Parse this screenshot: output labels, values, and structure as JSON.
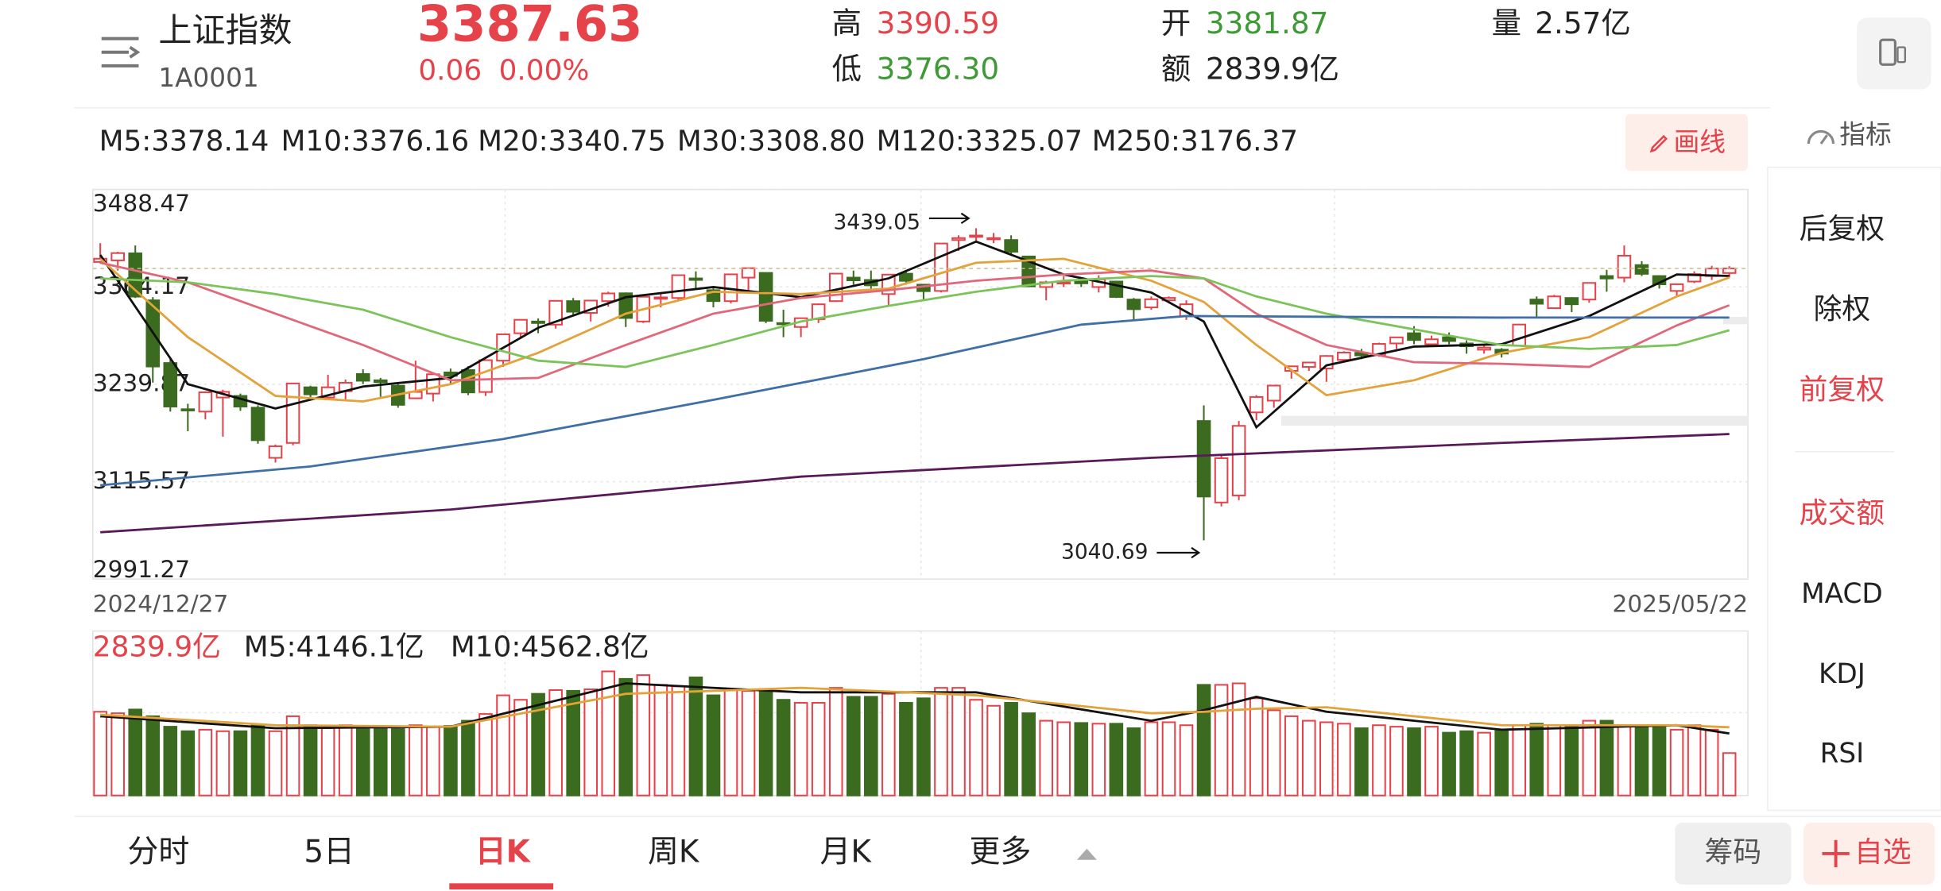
{
  "header": {
    "name": "上证指数",
    "code": "1A0001",
    "price": "3387.63",
    "change": "0.06",
    "change_pct": "0.00%",
    "high_label": "高",
    "high": "3390.59",
    "low_label": "低",
    "low": "3376.30",
    "open_label": "开",
    "open": "3381.87",
    "amount_label": "额",
    "amount": "2839.9亿",
    "volume_label": "量",
    "volume": "2.57亿"
  },
  "toolbar": {
    "draw": "画线",
    "indicator": "指标"
  },
  "side_menu": [
    "后复权",
    "除权",
    "前复权",
    "成交额",
    "MACD",
    "KDJ",
    "RSI"
  ],
  "tabs": [
    "分时",
    "5日",
    "日K",
    "周K",
    "月K",
    "更多"
  ],
  "buttons": {
    "chips": "筹码",
    "watch": "自选"
  },
  "chart_data": [
    {
      "type": "candlestick",
      "up_color": "#e5424a",
      "down_color": "#3b6b1f",
      "grid": true,
      "ylim": [
        2991.27,
        3488.47
      ],
      "yticks": [
        3488.47,
        3364.17,
        3239.87,
        3115.57,
        2991.27
      ],
      "x_labels": [
        "2024/12/27",
        "2025/05/22"
      ],
      "high_label": 3439.05,
      "low_label": 3040.69,
      "candles": [
        [
          3396,
          3420,
          3394,
          3400.14
        ],
        [
          3398,
          3409,
          3385,
          3407.33
        ],
        [
          3407,
          3417,
          3350,
          3351.76
        ],
        [
          3347,
          3351,
          3242,
          3262.56
        ],
        [
          3267,
          3273,
          3205,
          3211.43
        ],
        [
          3208,
          3215,
          3180,
          3206.92
        ],
        [
          3205,
          3231,
          3195,
          3229.64
        ],
        [
          3223,
          3233,
          3173,
          3230.17
        ],
        [
          3225,
          3228,
          3206,
          3211.39
        ],
        [
          3210,
          3213,
          3164,
          3168.52
        ],
        [
          3146,
          3163,
          3140,
          3160.76
        ],
        [
          3165,
          3241,
          3162,
          3240.94
        ],
        [
          3236,
          3238,
          3220,
          3227.03
        ],
        [
          3223,
          3252,
          3222,
          3236.03
        ],
        [
          3231,
          3246,
          3220,
          3241.82
        ],
        [
          3253,
          3259,
          3240,
          3244.38
        ],
        [
          3245,
          3248,
          3224,
          3242.62
        ],
        [
          3238,
          3240,
          3210,
          3213.62
        ],
        [
          3222,
          3270,
          3221,
          3230.16
        ],
        [
          3228,
          3255,
          3218,
          3252.63
        ],
        [
          3255,
          3260,
          3240,
          3250.6
        ],
        [
          3258,
          3263,
          3226,
          3229.49
        ],
        [
          3230,
          3271,
          3225,
          3270.66
        ],
        [
          3270,
          3304,
          3262,
          3303.67
        ],
        [
          3305,
          3323,
          3300,
          3322.17
        ],
        [
          3320,
          3324,
          3305,
          3318.06
        ],
        [
          3316,
          3347,
          3311,
          3346.39
        ],
        [
          3346,
          3350,
          3327,
          3332.48
        ],
        [
          3331,
          3347,
          3320,
          3346.72
        ],
        [
          3346,
          3358,
          3339,
          3355.83
        ],
        [
          3356,
          3357,
          3313,
          3324.49
        ],
        [
          3320,
          3352,
          3318,
          3351.54
        ],
        [
          3349,
          3355,
          3338,
          3350.78
        ],
        [
          3350,
          3380,
          3346,
          3379.11
        ],
        [
          3375,
          3384,
          3362,
          3373.03
        ],
        [
          3360,
          3365,
          3338,
          3346.04
        ],
        [
          3346,
          3381,
          3343,
          3380.21
        ],
        [
          3376,
          3389,
          3360,
          3388.06
        ],
        [
          3382,
          3382,
          3318,
          3320.9
        ],
        [
          3318,
          3335,
          3300,
          3316.93
        ],
        [
          3313,
          3325,
          3300,
          3324.21
        ],
        [
          3323,
          3343,
          3318,
          3341.96
        ],
        [
          3346,
          3382,
          3345,
          3381.1
        ],
        [
          3376,
          3385,
          3367,
          3372.55
        ],
        [
          3373,
          3385,
          3362,
          3366.16
        ],
        [
          3355,
          3380,
          3340,
          3379.83
        ],
        [
          3381,
          3384,
          3367,
          3371.92
        ],
        [
          3367,
          3367,
          3346,
          3358.73
        ],
        [
          3359,
          3420,
          3357,
          3419.56
        ],
        [
          3424,
          3430,
          3410,
          3426.43
        ],
        [
          3428,
          3439.05,
          3423,
          3429.76
        ],
        [
          3425,
          3433,
          3420,
          3426.43
        ],
        [
          3424,
          3430,
          3406,
          3408.95
        ],
        [
          3403,
          3404,
          3364,
          3364.83
        ],
        [
          3364,
          3372,
          3347,
          3370.03
        ],
        [
          3369,
          3378,
          3364,
          3369.98
        ],
        [
          3371,
          3376,
          3364,
          3368.7
        ],
        [
          3364,
          3379,
          3357,
          3373.75
        ],
        [
          3371,
          3372,
          3350,
          3351.31
        ],
        [
          3348,
          3350,
          3322,
          3335.75
        ],
        [
          3338,
          3352,
          3335,
          3348.44
        ],
        [
          3347,
          3352,
          3344,
          3350.13
        ],
        [
          3327,
          3347,
          3322,
          3342.01
        ],
        [
          3193,
          3213,
          3040.69,
          3096.58
        ],
        [
          3089,
          3150,
          3084,
          3145.55
        ],
        [
          3098,
          3193,
          3092,
          3186.81
        ],
        [
          3204,
          3226,
          3194,
          3223.64
        ],
        [
          3219,
          3239,
          3210,
          3238.23
        ],
        [
          3257,
          3263,
          3247,
          3262.81
        ],
        [
          3262,
          3268,
          3257,
          3267.66
        ],
        [
          3260,
          3277,
          3243,
          3276
        ],
        [
          3271,
          3282,
          3268,
          3280.34
        ],
        [
          3280,
          3285,
          3272,
          3276.73
        ],
        [
          3277,
          3293,
          3275,
          3291.43
        ],
        [
          3292,
          3300,
          3285,
          3299.76
        ],
        [
          3305,
          3314,
          3291,
          3296.36
        ],
        [
          3291,
          3302,
          3289,
          3297.29
        ],
        [
          3300,
          3306,
          3291,
          3295.06
        ],
        [
          3292,
          3296,
          3279,
          3288.41
        ],
        [
          3284,
          3289,
          3279,
          3286.65
        ],
        [
          3284,
          3286,
          3274,
          3279.03
        ],
        [
          3289,
          3317,
          3288,
          3316.11
        ],
        [
          3348,
          3352,
          3326,
          3342.67
        ],
        [
          3337,
          3354,
          3336,
          3352
        ],
        [
          3350,
          3351,
          3332,
          3342
        ],
        [
          3348,
          3370,
          3344,
          3369.24
        ],
        [
          3378,
          3386,
          3358,
          3374.87
        ],
        [
          3376,
          3417,
          3370,
          3403.95
        ],
        [
          3392,
          3397,
          3378,
          3380.82
        ],
        [
          3378,
          3379,
          3362,
          3367.46
        ],
        [
          3359,
          3368,
          3351,
          3367.58
        ],
        [
          3371,
          3384,
          3369,
          3380.48
        ],
        [
          3378,
          3391,
          3373,
          3387.57
        ],
        [
          3381.87,
          3390.59,
          3376.3,
          3387.63
        ]
      ],
      "series": [
        {
          "name": "M5:3378.14",
          "color": "#111111",
          "x": [
            0,
            5,
            10,
            15,
            20,
            25,
            30,
            35,
            40,
            45,
            50,
            55,
            60,
            63,
            66,
            70,
            75,
            80,
            85,
            90,
            93
          ],
          "values": [
            3405,
            3240,
            3209,
            3237,
            3248,
            3312,
            3351,
            3364,
            3351,
            3375,
            3422,
            3380,
            3357,
            3320,
            3185,
            3264,
            3288,
            3291,
            3327,
            3380,
            3378.14
          ]
        },
        {
          "name": "M10:3376.16",
          "color": "#e3a23a",
          "x": [
            0,
            5,
            10,
            15,
            20,
            25,
            30,
            35,
            40,
            45,
            50,
            55,
            60,
            63,
            66,
            70,
            75,
            80,
            85,
            90,
            93
          ],
          "values": [
            3400,
            3300,
            3225,
            3218,
            3240,
            3280,
            3330,
            3358,
            3355,
            3362,
            3395,
            3400,
            3372,
            3345,
            3290,
            3226,
            3245,
            3280,
            3300,
            3352,
            3376.16
          ]
        },
        {
          "name": "M20:3340.75",
          "color": "#e0687a",
          "x": [
            0,
            5,
            10,
            15,
            20,
            25,
            30,
            35,
            40,
            45,
            50,
            55,
            60,
            63,
            66,
            70,
            75,
            80,
            85,
            90,
            93
          ],
          "values": [
            3395,
            3370,
            3330,
            3290,
            3245,
            3248,
            3290,
            3330,
            3350,
            3360,
            3372,
            3380,
            3385,
            3375,
            3330,
            3290,
            3268,
            3266,
            3262,
            3315,
            3340.75
          ]
        },
        {
          "name": "M30:3308.80",
          "color": "#7cc35a",
          "x": [
            0,
            5,
            10,
            15,
            20,
            25,
            30,
            35,
            40,
            45,
            50,
            55,
            60,
            63,
            66,
            70,
            75,
            80,
            85,
            90,
            93
          ],
          "values": [
            3375,
            3370,
            3355,
            3335,
            3300,
            3270,
            3262,
            3290,
            3320,
            3340,
            3358,
            3372,
            3378,
            3375,
            3352,
            3330,
            3310,
            3290,
            3285,
            3290,
            3308.8
          ]
        },
        {
          "name": "M120:3325.07",
          "color": "#3f6fa6",
          "x": [
            0,
            12,
            23,
            35,
            47,
            56,
            62,
            70,
            80,
            93
          ],
          "values": [
            3111,
            3135,
            3170,
            3220,
            3272,
            3316,
            3327,
            3326,
            3325,
            3325.07
          ]
        },
        {
          "name": "M250:3176.37",
          "color": "#5a1a5a",
          "x": [
            0,
            20,
            40,
            60,
            80,
            93
          ],
          "values": [
            3051,
            3080,
            3122,
            3146,
            3165,
            3176.37
          ]
        }
      ]
    },
    {
      "type": "bar",
      "ylim": [
        0,
        11000
      ],
      "current_label": "2839.9亿",
      "values": [
        5600,
        5500,
        5750,
        5300,
        4600,
        4300,
        4400,
        4300,
        4300,
        4700,
        4300,
        5300,
        4700,
        4500,
        4700,
        4550,
        4500,
        4500,
        4700,
        4600,
        4650,
        5000,
        5450,
        6700,
        6400,
        6800,
        7050,
        7000,
        7100,
        8300,
        7800,
        8050,
        7400,
        7300,
        7900,
        6700,
        7100,
        7000,
        7100,
        6400,
        6200,
        6200,
        7200,
        6600,
        6600,
        6800,
        6200,
        6500,
        7200,
        7200,
        6400,
        6000,
        6200,
        5500,
        5000,
        4900,
        4850,
        4800,
        4800,
        4500,
        4900,
        4900,
        4700,
        7400,
        7400,
        7500,
        6500,
        5700,
        5300,
        5000,
        4900,
        4800,
        4500,
        4700,
        4600,
        4500,
        4600,
        4200,
        4300,
        4200,
        4400,
        4700,
        4800,
        4700,
        4700,
        5000,
        5000,
        4700,
        4700,
        4700,
        4400,
        4700,
        4400,
        2839.9
      ],
      "series": [
        {
          "name": "M5:4146.1亿",
          "color": "#111111",
          "x": [
            0,
            10,
            20,
            30,
            40,
            50,
            60,
            63,
            66,
            70,
            80,
            90,
            93
          ],
          "values": [
            5300,
            4500,
            4600,
            7500,
            6900,
            6900,
            5000,
            5700,
            6600,
            5600,
            4400,
            4700,
            4146.1
          ]
        },
        {
          "name": "M10:4562.8亿",
          "color": "#e3a23a",
          "x": [
            0,
            10,
            20,
            30,
            40,
            50,
            60,
            63,
            66,
            70,
            80,
            90,
            93
          ],
          "values": [
            5400,
            4700,
            4600,
            6800,
            7200,
            6700,
            5500,
            5600,
            5800,
            5900,
            4700,
            4700,
            4562.8
          ]
        }
      ]
    }
  ]
}
